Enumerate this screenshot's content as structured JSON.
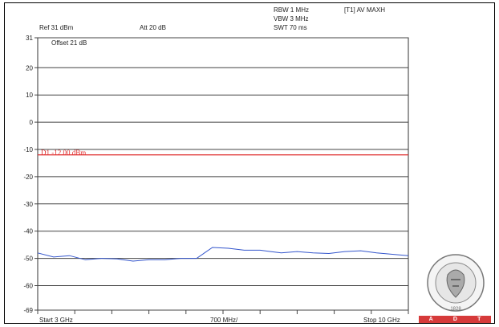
{
  "header": {
    "ref_level": "Ref 31 dBm",
    "attenuation": "Att 20 dB",
    "rbw": "RBW 1 MHz",
    "vbw": "VBW 3 MHz",
    "swt": "SWT 70 ms",
    "trace_mode": "[T1] AV MAXH",
    "offset": "Offset 21 dB"
  },
  "limit_line": {
    "label": "D1 -12.00 dBm",
    "value_dbm": -12,
    "color": "#e03030"
  },
  "footer": {
    "start": "Start 3 GHz",
    "span_div": "700 MHz/",
    "stop": "Stop 10 GHz"
  },
  "logo": {
    "text_arc": "BUREAU VERITAS",
    "year": "1828",
    "bar_letters": [
      "A",
      "D",
      "T"
    ],
    "bar_color": "#d63a3a"
  },
  "chart_data": {
    "type": "line",
    "title": "",
    "xlabel": "",
    "ylabel": "",
    "ylim": [
      -69,
      31
    ],
    "yticks": [
      31,
      20,
      10,
      0,
      -10,
      -20,
      -30,
      -40,
      -50,
      -60,
      -69
    ],
    "ytick_labels": [
      "31",
      "20",
      "10",
      "0",
      "-10",
      "-20",
      "-30",
      "-40",
      "-50",
      "-60",
      "-69"
    ],
    "xlim_ghz": [
      3,
      10
    ],
    "x_divisions": 10,
    "grid": true,
    "series": [
      {
        "color": "#3355cc",
        "x_ghz": [
          3.0,
          3.3,
          3.6,
          3.9,
          4.2,
          4.5,
          4.8,
          5.1,
          5.4,
          5.7,
          6.0,
          6.3,
          6.6,
          6.9,
          7.2,
          7.4,
          7.6,
          7.9,
          8.2,
          8.5,
          8.8,
          9.1,
          9.4,
          9.7,
          10.0
        ],
        "y_dbm": [
          -48.0,
          -49.5,
          -49.0,
          -50.5,
          -50.0,
          -50.2,
          -51.0,
          -50.5,
          -50.5,
          -50.0,
          -50.0,
          -46.0,
          -46.3,
          -47.0,
          -47.0,
          -47.5,
          -48.0,
          -47.5,
          -48.0,
          -48.2,
          -47.5,
          -47.2,
          -48.0,
          -48.5,
          -49.0
        ]
      }
    ]
  }
}
